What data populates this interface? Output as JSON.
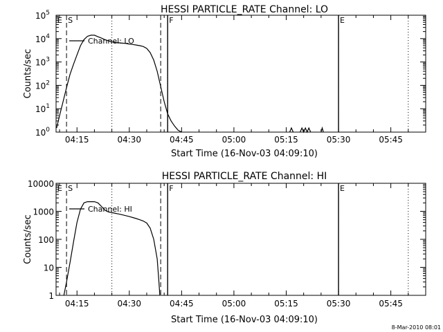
{
  "footer": {
    "timestamp": "8-Mar-2010 08:01"
  },
  "chart_data": [
    {
      "type": "line",
      "title": "HESSI PARTICLE_RATE Channel: LO",
      "xlabel": "Start Time (16-Nov-03 04:09:10)",
      "ylabel": "Counts/sec",
      "yscale": "log",
      "xlim": [
        "04:09",
        "05:55"
      ],
      "ylim": [
        1,
        100000
      ],
      "xticks": [
        "04:15",
        "04:30",
        "04:45",
        "05:00",
        "05:15",
        "05:30",
        "05:45"
      ],
      "yticks": [
        {
          "value": 1,
          "base": "10",
          "exp": "0"
        },
        {
          "value": 10,
          "base": "10",
          "exp": "1"
        },
        {
          "value": 100,
          "base": "10",
          "exp": "2"
        },
        {
          "value": 1000,
          "base": "10",
          "exp": "3"
        },
        {
          "value": 10000,
          "base": "10",
          "exp": "4"
        },
        {
          "value": 100000,
          "base": "10",
          "exp": "5"
        }
      ],
      "markers": {
        "dashed": [
          "04:12",
          "04:39"
        ],
        "dotted": [
          "04:25",
          "05:30",
          "05:50"
        ],
        "solid": [
          {
            "x": "04:41",
            "label": "F"
          },
          {
            "x": "05:30",
            "label": "E"
          }
        ],
        "top_labels": [
          {
            "x": "04:09",
            "label": "E"
          },
          {
            "x": "04:12",
            "label": "S"
          }
        ]
      },
      "legend": {
        "label": "Channel: LO",
        "placement": "top-left"
      },
      "series": [
        {
          "name": "Channel: LO",
          "segments": [
            [
              [
                "04:09:10",
                1.5
              ],
              [
                "04:10",
                5
              ],
              [
                "04:11",
                20
              ],
              [
                "04:12",
                80
              ],
              [
                "04:13",
                300
              ],
              [
                "04:14",
                800
              ],
              [
                "04:15",
                2000
              ],
              [
                "04:16",
                5000
              ],
              [
                "04:17",
                9000
              ],
              [
                "04:18",
                12500
              ],
              [
                "04:19",
                14000
              ],
              [
                "04:20",
                14000
              ],
              [
                "04:21",
                12000
              ],
              [
                "04:22",
                10500
              ],
              [
                "04:23",
                9000
              ],
              [
                "04:24",
                8000
              ],
              [
                "04:25",
                7200
              ],
              [
                "04:26",
                6800
              ],
              [
                "04:27",
                6600
              ],
              [
                "04:28",
                6400
              ],
              [
                "04:29",
                6200
              ],
              [
                "04:30",
                5800
              ],
              [
                "04:31",
                5600
              ],
              [
                "04:32",
                5300
              ],
              [
                "04:33",
                5000
              ],
              [
                "04:34",
                4600
              ],
              [
                "04:35",
                3800
              ],
              [
                "04:36",
                2500
              ],
              [
                "04:37",
                1200
              ],
              [
                "04:38",
                400
              ],
              [
                "04:39",
                90
              ],
              [
                "04:40",
                20
              ],
              [
                "04:41",
                6
              ],
              [
                "04:42",
                3
              ],
              [
                "04:43",
                1.8
              ],
              [
                "04:44",
                1.2
              ],
              [
                "04:45",
                1
              ]
            ],
            [
              [
                "05:16:00",
                1
              ],
              [
                "05:16:30",
                1.5
              ],
              [
                "05:17:00",
                1
              ]
            ],
            [
              [
                "05:19:00",
                1
              ],
              [
                "05:19:30",
                1.5
              ],
              [
                "05:20:00",
                1
              ],
              [
                "05:20:30",
                1.5
              ],
              [
                "05:21:00",
                1
              ],
              [
                "05:21:30",
                1.5
              ],
              [
                "05:22:00",
                1
              ]
            ],
            [
              [
                "05:25:00",
                1
              ],
              [
                "05:25:20",
                1.5
              ],
              [
                "05:25:40",
                1
              ]
            ]
          ]
        }
      ]
    },
    {
      "type": "line",
      "title": "HESSI PARTICLE_RATE Channel: HI",
      "xlabel": "Start Time (16-Nov-03 04:09:10)",
      "ylabel": "Counts/sec",
      "yscale": "log",
      "xlim": [
        "04:09",
        "05:55"
      ],
      "ylim": [
        1,
        10000
      ],
      "xticks": [
        "04:15",
        "04:30",
        "04:45",
        "05:00",
        "05:15",
        "05:30",
        "05:45"
      ],
      "yticks": [
        {
          "value": 1,
          "label": "1"
        },
        {
          "value": 10,
          "label": "10"
        },
        {
          "value": 100,
          "label": "100"
        },
        {
          "value": 1000,
          "label": "1000"
        },
        {
          "value": 10000,
          "label": "10000"
        }
      ],
      "markers": {
        "dashed": [
          "04:12",
          "04:39"
        ],
        "dotted": [
          "04:25",
          "05:30",
          "05:50"
        ],
        "solid": [
          {
            "x": "04:41",
            "label": "F"
          },
          {
            "x": "05:30",
            "label": "E"
          }
        ],
        "top_labels": [
          {
            "x": "04:09",
            "label": "E"
          },
          {
            "x": "04:12",
            "label": "S"
          }
        ]
      },
      "legend": {
        "label": "Channel: HI",
        "placement": "top-left"
      },
      "series": [
        {
          "name": "Channel: HI",
          "segments": [
            [
              [
                "04:11:15",
                1
              ],
              [
                "04:12",
                3
              ],
              [
                "04:13",
                15
              ],
              [
                "04:14",
                80
              ],
              [
                "04:15",
                400
              ],
              [
                "04:16",
                1200
              ],
              [
                "04:17",
                2000
              ],
              [
                "04:18",
                2200
              ],
              [
                "04:19",
                2200
              ],
              [
                "04:20",
                2200
              ],
              [
                "04:21",
                2000
              ],
              [
                "04:22",
                1500
              ],
              [
                "04:23",
                1100
              ],
              [
                "04:24",
                950
              ],
              [
                "04:25",
                900
              ],
              [
                "04:26",
                850
              ],
              [
                "04:27",
                800
              ],
              [
                "04:28",
                750
              ],
              [
                "04:29",
                700
              ],
              [
                "04:30",
                650
              ],
              [
                "04:31",
                600
              ],
              [
                "04:32",
                550
              ],
              [
                "04:33",
                500
              ],
              [
                "04:34",
                450
              ],
              [
                "04:35",
                380
              ],
              [
                "04:36",
                250
              ],
              [
                "04:37",
                100
              ],
              [
                "04:38",
                20
              ],
              [
                "04:38:30",
                3
              ],
              [
                "04:38:45",
                1
              ]
            ]
          ]
        }
      ]
    }
  ]
}
